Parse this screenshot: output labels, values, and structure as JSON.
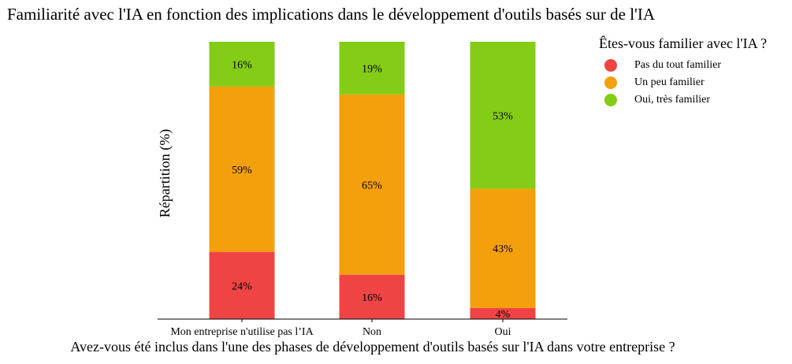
{
  "chart_data": {
    "type": "bar",
    "stacked": true,
    "title": "Familiarité avec l'IA en fonction des implications dans le développement d'outils basés sur de l'IA",
    "xlabel": "Avez-vous été inclus dans l'une des phases de développement d'outils basés sur l'IA dans votre entreprise ?",
    "ylabel": "Répartition (%)",
    "ylim": [
      0,
      100
    ],
    "categories": [
      "Mon entreprise n'utilise pas l’IA",
      "Non",
      "Oui"
    ],
    "legend_title": "Êtes-vous familier avec l'IA ?",
    "legend_position": "top-right",
    "series": [
      {
        "name": "Pas du tout familier",
        "color": "#f04444",
        "values": [
          24,
          16,
          4
        ],
        "labels": [
          "24%",
          "16%",
          "4%"
        ]
      },
      {
        "name": "Un peu familier",
        "color": "#f49f0c",
        "values": [
          59,
          65,
          43
        ],
        "labels": [
          "59%",
          "65%",
          "43%"
        ]
      },
      {
        "name": "Oui, très familier",
        "color": "#84cc16",
        "values": [
          16,
          19,
          53
        ],
        "labels": [
          "16%",
          "19%",
          "53%"
        ]
      }
    ]
  }
}
